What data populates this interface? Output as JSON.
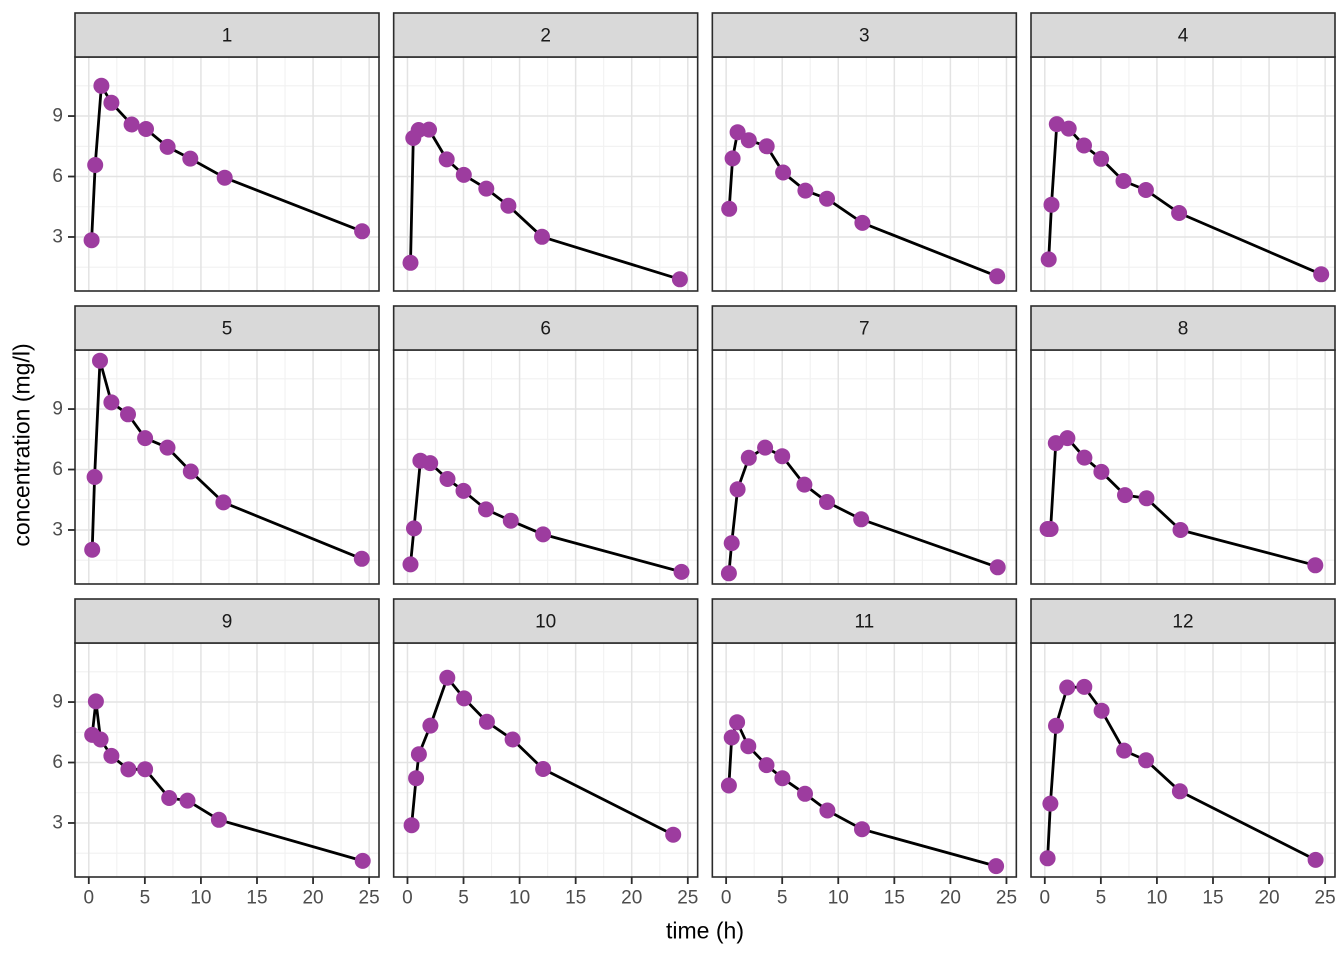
{
  "chart_data": {
    "type": "line",
    "title": "",
    "xlabel": "time (h)",
    "ylabel": "concentration (mg/l)",
    "x_ticks": [
      0,
      5,
      10,
      15,
      20,
      25
    ],
    "x_minor_ticks": [
      2.5,
      7.5,
      12.5,
      17.5,
      22.5
    ],
    "y_ticks": [
      3,
      6,
      9
    ],
    "y_minor_ticks": [
      1.5,
      4.5,
      7.5,
      10.5
    ],
    "xlim": [
      -1.23,
      25.88
    ],
    "ylim": [
      0.32,
      11.93
    ],
    "grid": "major+minor",
    "legend": "none",
    "facets": [
      {
        "label": "1",
        "points": [
          [
            0.25,
            2.84
          ],
          [
            0.57,
            6.57
          ],
          [
            1.12,
            10.5
          ],
          [
            2.02,
            9.66
          ],
          [
            3.82,
            8.58
          ],
          [
            5.1,
            8.36
          ],
          [
            7.03,
            7.47
          ],
          [
            9.05,
            6.89
          ],
          [
            12.12,
            5.94
          ],
          [
            24.37,
            3.28
          ]
        ]
      },
      {
        "label": "2",
        "points": [
          [
            0.27,
            1.72
          ],
          [
            0.52,
            7.91
          ],
          [
            1.0,
            8.31
          ],
          [
            1.92,
            8.33
          ],
          [
            3.5,
            6.85
          ],
          [
            5.02,
            6.08
          ],
          [
            7.03,
            5.4
          ],
          [
            9.0,
            4.55
          ],
          [
            12.0,
            3.01
          ],
          [
            24.3,
            0.9
          ]
        ]
      },
      {
        "label": "3",
        "points": [
          [
            0.27,
            4.4
          ],
          [
            0.58,
            6.9
          ],
          [
            1.02,
            8.2
          ],
          [
            2.02,
            7.8
          ],
          [
            3.62,
            7.5
          ],
          [
            5.08,
            6.2
          ],
          [
            7.07,
            5.3
          ],
          [
            9.0,
            4.9
          ],
          [
            12.15,
            3.7
          ],
          [
            24.17,
            1.05
          ]
        ]
      },
      {
        "label": "4",
        "points": [
          [
            0.35,
            1.89
          ],
          [
            0.6,
            4.6
          ],
          [
            1.07,
            8.6
          ],
          [
            2.13,
            8.38
          ],
          [
            3.5,
            7.54
          ],
          [
            5.02,
            6.88
          ],
          [
            7.02,
            5.78
          ],
          [
            9.02,
            5.33
          ],
          [
            11.98,
            4.19
          ],
          [
            24.65,
            1.15
          ]
        ]
      },
      {
        "label": "5",
        "points": [
          [
            0.3,
            2.02
          ],
          [
            0.52,
            5.63
          ],
          [
            1.0,
            11.4
          ],
          [
            2.02,
            9.33
          ],
          [
            3.5,
            8.74
          ],
          [
            5.02,
            7.56
          ],
          [
            7.02,
            7.09
          ],
          [
            9.1,
            5.9
          ],
          [
            12.0,
            4.37
          ],
          [
            24.35,
            1.57
          ]
        ]
      },
      {
        "label": "6",
        "points": [
          [
            0.27,
            1.29
          ],
          [
            0.58,
            3.08
          ],
          [
            1.15,
            6.44
          ],
          [
            2.03,
            6.32
          ],
          [
            3.57,
            5.53
          ],
          [
            5.0,
            4.94
          ],
          [
            7.0,
            4.02
          ],
          [
            9.22,
            3.46
          ],
          [
            12.1,
            2.78
          ],
          [
            24.44,
            0.92
          ]
        ]
      },
      {
        "label": "7",
        "points": [
          [
            0.25,
            0.85
          ],
          [
            0.5,
            2.35
          ],
          [
            1.02,
            5.02
          ],
          [
            2.02,
            6.58
          ],
          [
            3.48,
            7.09
          ],
          [
            5.0,
            6.66
          ],
          [
            6.98,
            5.25
          ],
          [
            9.0,
            4.39
          ],
          [
            12.05,
            3.53
          ],
          [
            24.22,
            1.15
          ]
        ]
      },
      {
        "label": "8",
        "points": [
          [
            0.25,
            3.05
          ],
          [
            0.52,
            3.05
          ],
          [
            0.98,
            7.31
          ],
          [
            2.02,
            7.56
          ],
          [
            3.53,
            6.59
          ],
          [
            5.05,
            5.88
          ],
          [
            7.15,
            4.73
          ],
          [
            9.07,
            4.57
          ],
          [
            12.1,
            3.0
          ],
          [
            24.12,
            1.25
          ]
        ]
      },
      {
        "label": "9",
        "points": [
          [
            0.3,
            7.37
          ],
          [
            0.63,
            9.03
          ],
          [
            1.05,
            7.14
          ],
          [
            2.02,
            6.33
          ],
          [
            3.53,
            5.66
          ],
          [
            5.02,
            5.67
          ],
          [
            7.17,
            4.24
          ],
          [
            8.8,
            4.11
          ],
          [
            11.6,
            3.16
          ],
          [
            24.43,
            1.12
          ]
        ]
      },
      {
        "label": "10",
        "points": [
          [
            0.37,
            2.89
          ],
          [
            0.77,
            5.22
          ],
          [
            1.02,
            6.41
          ],
          [
            2.05,
            7.83
          ],
          [
            3.55,
            10.21
          ],
          [
            5.05,
            9.18
          ],
          [
            7.08,
            8.02
          ],
          [
            9.38,
            7.14
          ],
          [
            12.1,
            5.68
          ],
          [
            23.7,
            2.42
          ]
        ]
      },
      {
        "label": "11",
        "points": [
          [
            0.25,
            4.86
          ],
          [
            0.5,
            7.24
          ],
          [
            0.98,
            8.0
          ],
          [
            1.98,
            6.81
          ],
          [
            3.6,
            5.87
          ],
          [
            5.02,
            5.22
          ],
          [
            7.03,
            4.45
          ],
          [
            9.03,
            3.62
          ],
          [
            12.12,
            2.69
          ],
          [
            24.08,
            0.86
          ]
        ]
      },
      {
        "label": "12",
        "points": [
          [
            0.25,
            1.25
          ],
          [
            0.5,
            3.96
          ],
          [
            1.0,
            7.82
          ],
          [
            2.0,
            9.72
          ],
          [
            3.52,
            9.75
          ],
          [
            5.07,
            8.57
          ],
          [
            7.07,
            6.59
          ],
          [
            9.03,
            6.11
          ],
          [
            12.05,
            4.57
          ],
          [
            24.15,
            1.17
          ]
        ]
      }
    ]
  },
  "colors": {
    "point": "#9D3C9F",
    "line": "#000000",
    "strip_fill": "#D9D9D9",
    "panel_background": "#FFFFFF",
    "panel_border": "#2B2B2B",
    "grid_major": "#E3E3E3",
    "grid_minor": "#F1F1F1",
    "tick_mark": "#2B2B2B",
    "tick_label": "#4D4D4D",
    "axis_title": "#000000",
    "strip_label": "#1A1A1A"
  }
}
